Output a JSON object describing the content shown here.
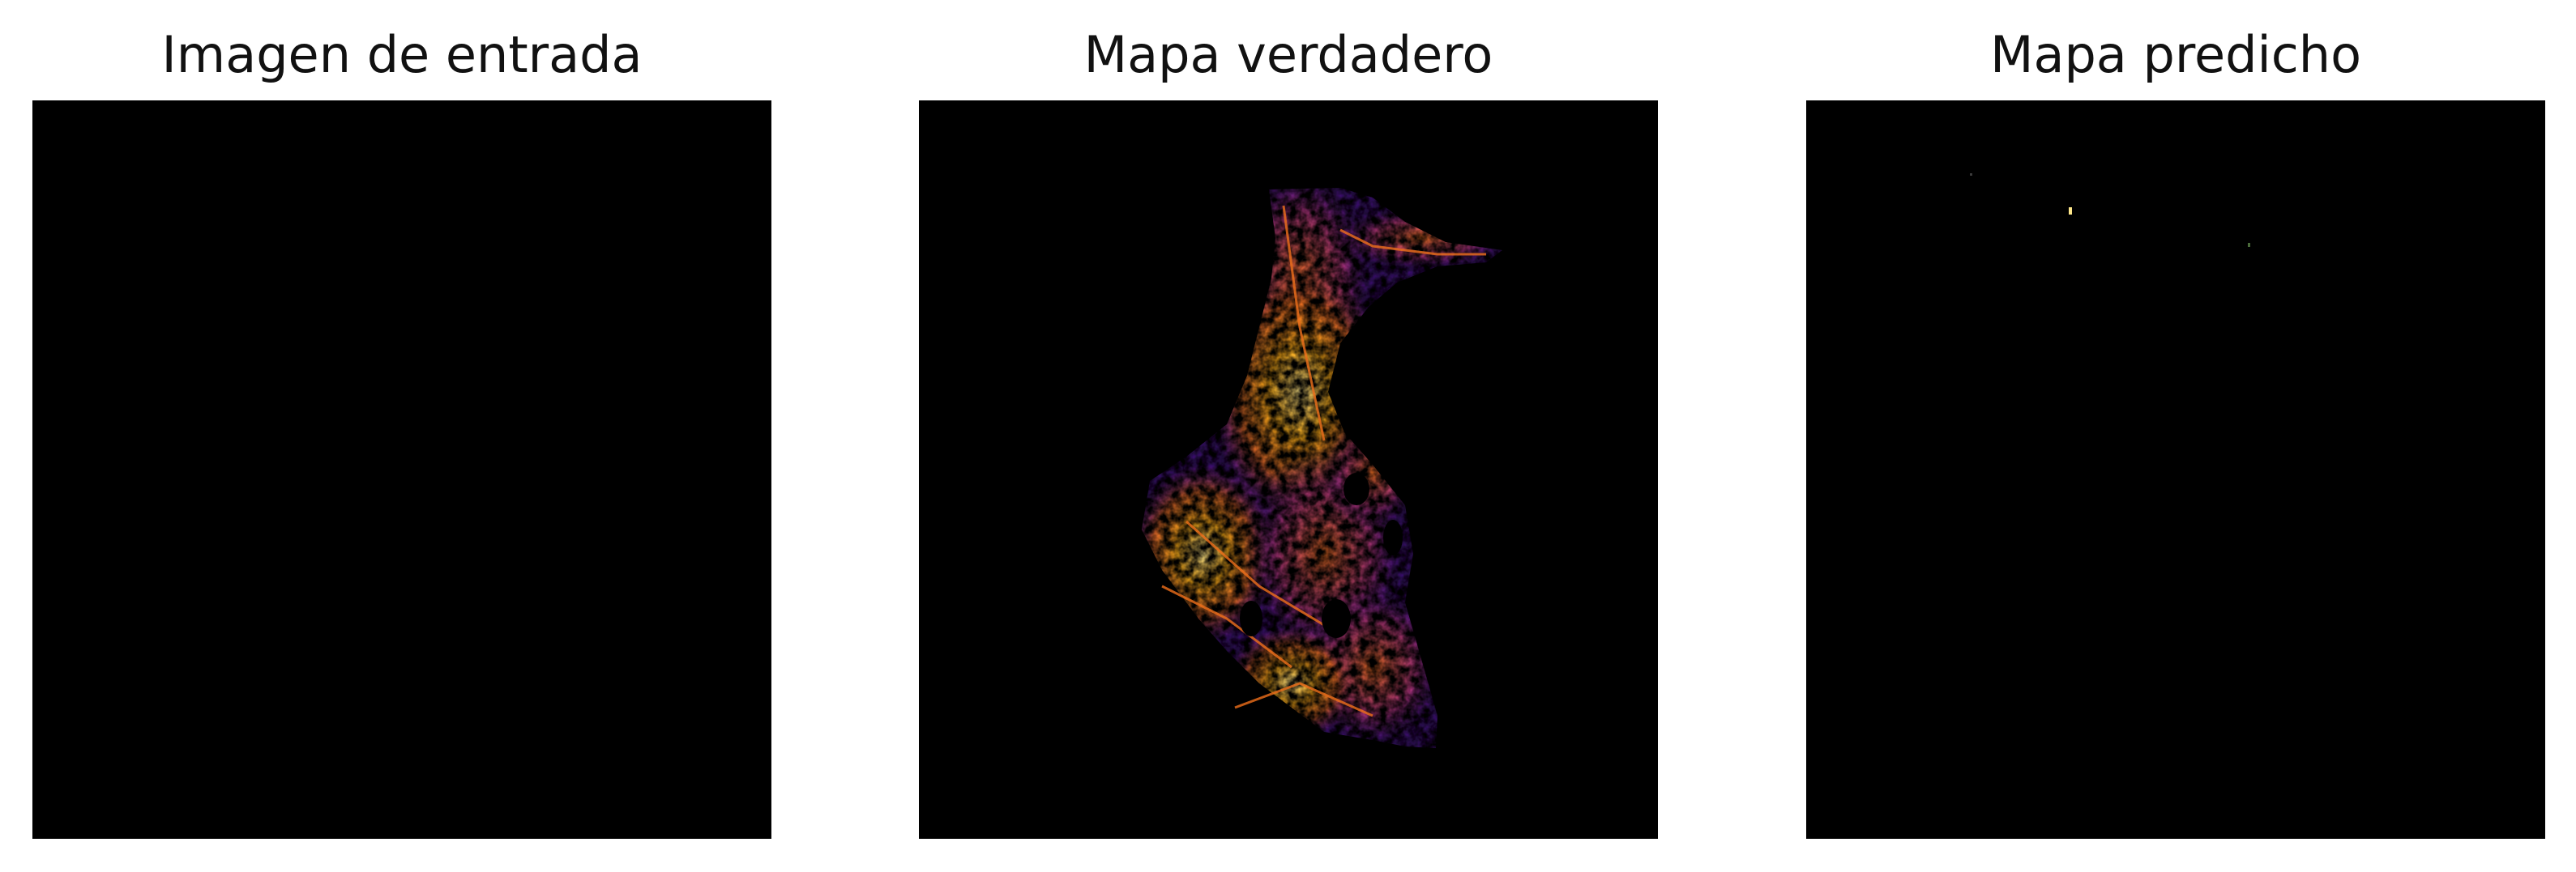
{
  "figure": {
    "panels": [
      {
        "title": "Imagen de entrada",
        "content": "black"
      },
      {
        "title": "Mapa verdadero",
        "content": "heatmap"
      },
      {
        "title": "Mapa predicho",
        "content": "sparse-dots"
      }
    ],
    "colors": {
      "background": "#ffffff",
      "image_background": "#000000",
      "colormap": "inferno",
      "inferno_dark": "#3b0f70",
      "inferno_mid": "#b63679",
      "inferno_orange": "#f0701b",
      "inferno_bright": "#fcae12",
      "inferno_light": "#fde68a"
    }
  }
}
